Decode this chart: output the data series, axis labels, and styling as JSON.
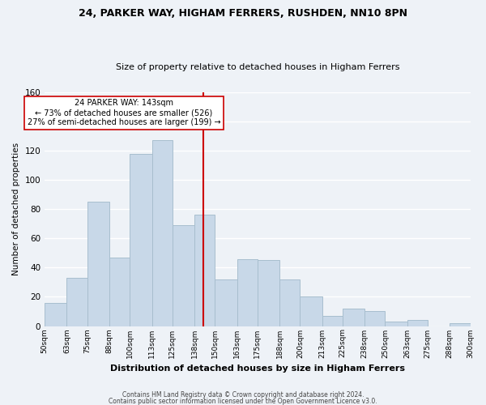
{
  "title": "24, PARKER WAY, HIGHAM FERRERS, RUSHDEN, NN10 8PN",
  "subtitle": "Size of property relative to detached houses in Higham Ferrers",
  "xlabel": "Distribution of detached houses by size in Higham Ferrers",
  "ylabel": "Number of detached properties",
  "bin_labels": [
    "50sqm",
    "63sqm",
    "75sqm",
    "88sqm",
    "100sqm",
    "113sqm",
    "125sqm",
    "138sqm",
    "150sqm",
    "163sqm",
    "175sqm",
    "188sqm",
    "200sqm",
    "213sqm",
    "225sqm",
    "238sqm",
    "250sqm",
    "263sqm",
    "275sqm",
    "288sqm",
    "300sqm"
  ],
  "bin_edges": [
    50,
    63,
    75,
    88,
    100,
    113,
    125,
    138,
    150,
    163,
    175,
    188,
    200,
    213,
    225,
    238,
    250,
    263,
    275,
    288,
    300
  ],
  "bar_heights": [
    16,
    33,
    85,
    47,
    118,
    127,
    69,
    76,
    32,
    46,
    45,
    32,
    20,
    7,
    12,
    10,
    3,
    4,
    0,
    2
  ],
  "bar_color": "#c8d8e8",
  "bar_edge_color": "#a8bece",
  "property_line_x": 143,
  "property_line_color": "#cc0000",
  "annotation_text_line1": "24 PARKER WAY: 143sqm",
  "annotation_text_line2": "← 73% of detached houses are smaller (526)",
  "annotation_text_line3": "27% of semi-detached houses are larger (199) →",
  "ylim": [
    0,
    160
  ],
  "yticks": [
    0,
    20,
    40,
    60,
    80,
    100,
    120,
    140,
    160
  ],
  "footer_line1": "Contains HM Land Registry data © Crown copyright and database right 2024.",
  "footer_line2": "Contains public sector information licensed under the Open Government Licence v3.0.",
  "background_color": "#eef2f7",
  "grid_color": "#ffffff"
}
